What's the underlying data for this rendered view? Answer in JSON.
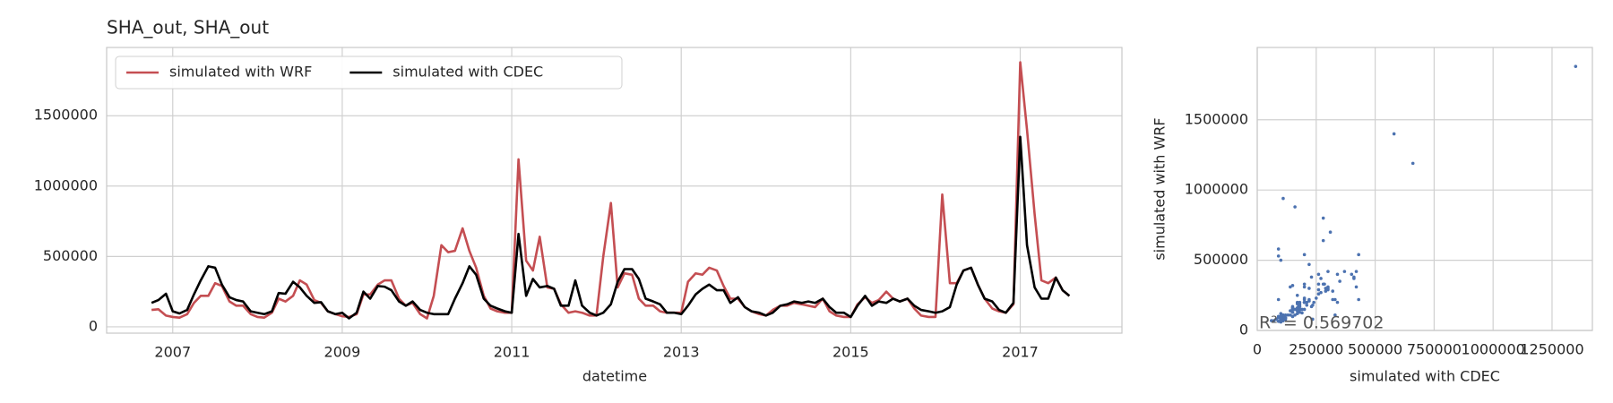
{
  "chart_data": [
    {
      "type": "line",
      "title": "SHA_out, SHA_out",
      "xlabel": "datetime",
      "x": [
        2006.75,
        2006.83,
        2006.92,
        2007.0,
        2007.08,
        2007.17,
        2007.25,
        2007.33,
        2007.42,
        2007.5,
        2007.58,
        2007.67,
        2007.75,
        2007.83,
        2007.92,
        2008.0,
        2008.08,
        2008.17,
        2008.25,
        2008.33,
        2008.42,
        2008.5,
        2008.58,
        2008.67,
        2008.75,
        2008.83,
        2008.92,
        2009.0,
        2009.08,
        2009.17,
        2009.25,
        2009.33,
        2009.42,
        2009.5,
        2009.58,
        2009.67,
        2009.75,
        2009.83,
        2009.92,
        2010.0,
        2010.08,
        2010.17,
        2010.25,
        2010.33,
        2010.42,
        2010.5,
        2010.58,
        2010.67,
        2010.75,
        2010.83,
        2010.92,
        2011.0,
        2011.08,
        2011.17,
        2011.25,
        2011.33,
        2011.42,
        2011.5,
        2011.58,
        2011.67,
        2011.75,
        2011.83,
        2011.92,
        2012.0,
        2012.08,
        2012.17,
        2012.25,
        2012.33,
        2012.42,
        2012.5,
        2012.58,
        2012.67,
        2012.75,
        2012.83,
        2012.92,
        2013.0,
        2013.08,
        2013.17,
        2013.25,
        2013.33,
        2013.42,
        2013.5,
        2013.58,
        2013.67,
        2013.75,
        2013.83,
        2013.92,
        2014.0,
        2014.08,
        2014.17,
        2014.25,
        2014.33,
        2014.42,
        2014.5,
        2014.58,
        2014.67,
        2014.75,
        2014.83,
        2014.92,
        2015.0,
        2015.08,
        2015.17,
        2015.25,
        2015.33,
        2015.42,
        2015.5,
        2015.58,
        2015.67,
        2015.75,
        2015.83,
        2015.92,
        2016.0,
        2016.08,
        2016.17,
        2016.25,
        2016.33,
        2016.42,
        2016.5,
        2016.58,
        2016.67,
        2016.75,
        2016.83,
        2016.92,
        2017.0,
        2017.08,
        2017.17,
        2017.25,
        2017.33,
        2017.42,
        2017.5,
        2017.58
      ],
      "series": [
        {
          "name": "simulated with WRF",
          "color": "#c44e52",
          "values": [
            120000,
            125000,
            80000,
            70000,
            65000,
            90000,
            170000,
            220000,
            220000,
            310000,
            290000,
            180000,
            150000,
            150000,
            90000,
            70000,
            65000,
            100000,
            200000,
            180000,
            220000,
            330000,
            300000,
            190000,
            170000,
            110000,
            90000,
            75000,
            70000,
            90000,
            230000,
            230000,
            300000,
            330000,
            330000,
            200000,
            150000,
            170000,
            90000,
            60000,
            220000,
            580000,
            530000,
            540000,
            700000,
            540000,
            420000,
            220000,
            130000,
            110000,
            100000,
            100000,
            1190000,
            470000,
            400000,
            640000,
            280000,
            270000,
            160000,
            100000,
            110000,
            100000,
            80000,
            80000,
            500000,
            880000,
            280000,
            380000,
            370000,
            200000,
            150000,
            150000,
            110000,
            100000,
            100000,
            100000,
            320000,
            380000,
            370000,
            420000,
            400000,
            290000,
            200000,
            200000,
            140000,
            110000,
            90000,
            80000,
            120000,
            150000,
            150000,
            170000,
            160000,
            150000,
            140000,
            200000,
            110000,
            80000,
            70000,
            70000,
            160000,
            210000,
            170000,
            190000,
            250000,
            200000,
            180000,
            200000,
            130000,
            80000,
            70000,
            70000,
            940000,
            310000,
            310000,
            400000,
            420000,
            300000,
            200000,
            130000,
            110000,
            100000,
            160000,
            1880000,
            1400000,
            800000,
            330000,
            310000,
            350000,
            260000,
            220000
          ]
        },
        {
          "name": "simulated with CDEC",
          "color": "#000000",
          "values": [
            170000,
            190000,
            235000,
            110000,
            95000,
            120000,
            230000,
            330000,
            430000,
            420000,
            300000,
            210000,
            190000,
            180000,
            110000,
            100000,
            90000,
            110000,
            240000,
            235000,
            320000,
            280000,
            220000,
            170000,
            175000,
            110000,
            90000,
            100000,
            60000,
            100000,
            250000,
            200000,
            290000,
            285000,
            260000,
            180000,
            150000,
            180000,
            120000,
            100000,
            90000,
            90000,
            90000,
            200000,
            310000,
            430000,
            370000,
            200000,
            150000,
            130000,
            110000,
            100000,
            660000,
            220000,
            340000,
            280000,
            290000,
            270000,
            150000,
            150000,
            330000,
            150000,
            100000,
            80000,
            100000,
            160000,
            320000,
            410000,
            410000,
            340000,
            200000,
            180000,
            160000,
            100000,
            100000,
            90000,
            150000,
            230000,
            270000,
            300000,
            260000,
            260000,
            170000,
            210000,
            140000,
            110000,
            100000,
            80000,
            100000,
            150000,
            160000,
            180000,
            170000,
            180000,
            170000,
            200000,
            140000,
            100000,
            100000,
            70000,
            150000,
            220000,
            150000,
            180000,
            170000,
            200000,
            180000,
            200000,
            150000,
            120000,
            110000,
            100000,
            110000,
            140000,
            300000,
            400000,
            420000,
            300000,
            200000,
            180000,
            120000,
            100000,
            170000,
            1350000,
            580000,
            280000,
            200000,
            200000,
            350000,
            260000,
            220000
          ]
        }
      ],
      "xlim": [
        2006.22,
        2018.2
      ],
      "xticks": [
        2007,
        2009,
        2011,
        2013,
        2015,
        2017
      ],
      "ylim": [
        -45000,
        1985000
      ],
      "yticks": [
        0,
        500000,
        1000000,
        1500000
      ],
      "grid": true,
      "legend": "upper left"
    },
    {
      "type": "scatter",
      "xlabel": "simulated with CDEC",
      "ylabel": "simulated with WRF",
      "color": "#4c72b0",
      "annotation": "R² = 0.569702",
      "xlim": [
        0,
        1421000
      ],
      "xticks": [
        0,
        250000,
        500000,
        750000,
        1000000,
        1250000
      ],
      "ylim": [
        0,
        2015000
      ],
      "yticks": [
        0,
        500000,
        1000000,
        1500000
      ],
      "grid": true
    }
  ]
}
